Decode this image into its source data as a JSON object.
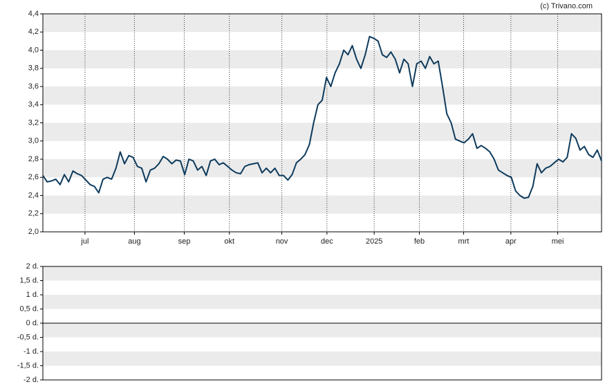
{
  "chart_data": [
    {
      "type": "line",
      "source": "(c) Trivano.com",
      "color": "#0d3a5c",
      "values": [
        2.62,
        2.55,
        2.56,
        2.58,
        2.52,
        2.63,
        2.55,
        2.67,
        2.64,
        2.62,
        2.57,
        2.52,
        2.5,
        2.43,
        2.58,
        2.6,
        2.58,
        2.7,
        2.88,
        2.75,
        2.84,
        2.82,
        2.72,
        2.7,
        2.55,
        2.68,
        2.7,
        2.75,
        2.83,
        2.8,
        2.75,
        2.79,
        2.78,
        2.63,
        2.8,
        2.78,
        2.68,
        2.72,
        2.62,
        2.78,
        2.8,
        2.74,
        2.76,
        2.72,
        2.68,
        2.65,
        2.64,
        2.72,
        2.74,
        2.75,
        2.76,
        2.65,
        2.7,
        2.65,
        2.7,
        2.62,
        2.62,
        2.57,
        2.63,
        2.76,
        2.8,
        2.85,
        2.96,
        3.2,
        3.4,
        3.45,
        3.7,
        3.6,
        3.75,
        3.85,
        4.0,
        3.95,
        4.05,
        3.9,
        3.8,
        3.95,
        4.15,
        4.13,
        4.1,
        3.95,
        3.92,
        3.98,
        3.9,
        3.75,
        3.9,
        3.85,
        3.6,
        3.85,
        3.88,
        3.8,
        3.93,
        3.85,
        3.88,
        3.6,
        3.3,
        3.2,
        3.02,
        3.0,
        2.98,
        3.02,
        3.08,
        2.92,
        2.95,
        2.92,
        2.88,
        2.8,
        2.68,
        2.65,
        2.62,
        2.6,
        2.45,
        2.4,
        2.37,
        2.38,
        2.5,
        2.75,
        2.65,
        2.7,
        2.72,
        2.76,
        2.8,
        2.77,
        2.82,
        3.08,
        3.03,
        2.9,
        2.94,
        2.85,
        2.82,
        2.9,
        2.78
      ],
      "xlim": [
        0,
        130
      ],
      "xticks": [
        {
          "value": 9.8,
          "label": "jul"
        },
        {
          "value": 21.3,
          "label": "aug"
        },
        {
          "value": 32.9,
          "label": "sep"
        },
        {
          "value": 43.4,
          "label": "okt"
        },
        {
          "value": 55.6,
          "label": "nov"
        },
        {
          "value": 66.1,
          "label": "dec"
        },
        {
          "value": 77.1,
          "label": "2025"
        },
        {
          "value": 87.6,
          "label": "feb"
        },
        {
          "value": 97.9,
          "label": "mrt"
        },
        {
          "value": 108.9,
          "label": "apr"
        },
        {
          "value": 119.8,
          "label": "mei"
        }
      ],
      "ylim": [
        2.0,
        4.4
      ],
      "yticks": [
        {
          "value": 2.0,
          "label": "2,0"
        },
        {
          "value": 2.2,
          "label": "2,2"
        },
        {
          "value": 2.4,
          "label": "2,4"
        },
        {
          "value": 2.6,
          "label": "2,6"
        },
        {
          "value": 2.8,
          "label": "2,8"
        },
        {
          "value": 3.0,
          "label": "3,0"
        },
        {
          "value": 3.2,
          "label": "3,2"
        },
        {
          "value": 3.4,
          "label": "3,4"
        },
        {
          "value": 3.6,
          "label": "3,6"
        },
        {
          "value": 3.8,
          "label": "3,8"
        },
        {
          "value": 4.0,
          "label": "4,0"
        },
        {
          "value": 4.2,
          "label": "4,2"
        },
        {
          "value": 4.4,
          "label": "4,4"
        }
      ]
    },
    {
      "type": "bar",
      "ylim": [
        -2,
        2
      ],
      "yticks": [
        {
          "value": -2,
          "label": "-2 d."
        },
        {
          "value": -1.5,
          "label": "-1,5 d."
        },
        {
          "value": -1,
          "label": "-1 d."
        },
        {
          "value": -0.5,
          "label": "-0,5 d."
        },
        {
          "value": 0,
          "label": "0 d."
        },
        {
          "value": 0.5,
          "label": "0,5 d."
        },
        {
          "value": 1,
          "label": "1 d."
        },
        {
          "value": 1.5,
          "label": "1,5 d."
        },
        {
          "value": 2,
          "label": "2 d."
        }
      ]
    }
  ]
}
